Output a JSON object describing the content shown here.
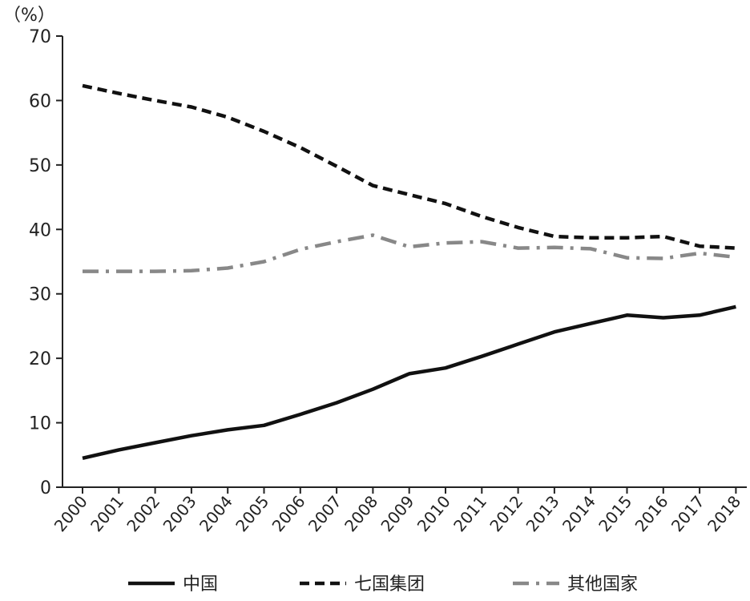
{
  "chart_data": {
    "type": "line",
    "y_unit_label": "（%）",
    "ylim": [
      0,
      70
    ],
    "y_ticks": [
      0,
      10,
      20,
      30,
      40,
      50,
      60,
      70
    ],
    "categories": [
      "2000",
      "2001",
      "2002",
      "2003",
      "2004",
      "2005",
      "2006",
      "2007",
      "2008",
      "2009",
      "2010",
      "2011",
      "2012",
      "2013",
      "2014",
      "2015",
      "2016",
      "2017",
      "2018"
    ],
    "grid": false,
    "legend_position": "bottom",
    "series": [
      {
        "name": "中国",
        "style": "solid",
        "color": "#111111",
        "values": [
          4.5,
          5.8,
          6.9,
          8.0,
          8.9,
          9.6,
          11.3,
          13.1,
          15.2,
          17.6,
          18.5,
          20.3,
          22.2,
          24.1,
          25.4,
          26.7,
          26.3,
          26.7,
          28.0
        ]
      },
      {
        "name": "七国集团",
        "style": "dashed",
        "color": "#111111",
        "values": [
          62.3,
          61.1,
          60.0,
          59.0,
          57.4,
          55.2,
          52.7,
          49.8,
          46.8,
          45.4,
          44.0,
          42.0,
          40.3,
          38.9,
          38.7,
          38.7,
          38.9,
          37.4,
          37.1
        ]
      },
      {
        "name": "其他国家",
        "style": "dashdot",
        "color": "#888888",
        "values": [
          33.5,
          33.5,
          33.5,
          33.6,
          34.0,
          35.0,
          36.9,
          38.1,
          39.1,
          37.3,
          37.9,
          38.1,
          37.1,
          37.2,
          37.0,
          35.6,
          35.5,
          36.3,
          35.7
        ]
      }
    ]
  }
}
